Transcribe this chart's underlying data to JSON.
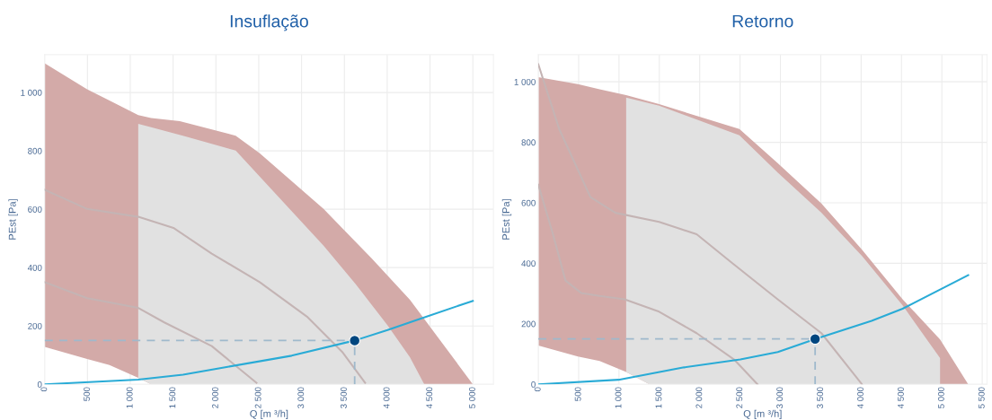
{
  "chart_data": [
    {
      "type": "area",
      "title": "Insuflação",
      "xlabel": "Q [m ³/h]",
      "ylabel": "PEst [Pa]",
      "xlim": [
        0,
        5240
      ],
      "ylim": [
        0,
        1130
      ],
      "xticks": [
        0,
        500,
        {
          "value": 1000,
          "label": "1 000"
        },
        {
          "value": 1500,
          "label": "1 500"
        },
        {
          "value": 2000,
          "label": "2 000"
        },
        {
          "value": 2500,
          "label": "2 500"
        },
        {
          "value": 3000,
          "label": "3 000"
        },
        {
          "value": 3500,
          "label": "3 500"
        },
        {
          "value": 4000,
          "label": "4 000"
        },
        {
          "value": 4500,
          "label": "4 500"
        },
        {
          "value": 5000,
          "label": "5 000"
        }
      ],
      "yticks": [
        0,
        200,
        400,
        600,
        800,
        {
          "value": 1000,
          "label": "1 000"
        }
      ],
      "grid": true,
      "series": [
        {
          "color": "#d3aaa8",
          "x": [
            0,
            496,
            757,
            1093,
            1243,
            1578,
            2231,
            2511,
            3257,
            3817,
            4265,
            5000,
            1243,
            1093,
            757,
            496,
            0
          ],
          "values": [
            1100,
            1011,
            973,
            923,
            913,
            902,
            852,
            792,
            601,
            432,
            290,
            0,
            0,
            22,
            66,
            87,
            128
          ]
        },
        {
          "color": "#e1e1e1",
          "x": [
            1093,
            1243,
            1653,
            2231,
            3257,
            3631,
            4004,
            4265,
            4433,
            1243,
            1093
          ],
          "values": [
            893,
            881,
            849,
            801,
            475,
            344,
            202,
            93,
            0,
            0,
            22
          ]
        },
        {
          "type": "line",
          "color": "#c4b4b4",
          "x": [
            0,
            496,
            1093,
            1504,
            1951,
            2511,
            3071,
            3481,
            3742
          ],
          "values": [
            667,
            601,
            574,
            536,
            448,
            350,
            230,
            109,
            5
          ]
        },
        {
          "type": "line",
          "color": "#c4b4b4",
          "x": [
            0,
            496,
            1093,
            1392,
            1951,
            2474
          ],
          "values": [
            350,
            295,
            262,
            213,
            131,
            5
          ]
        },
        {
          "type": "line",
          "color": "#29abd6",
          "x": [
            0,
            1093,
            1616,
            2138,
            2884,
            3631,
            4004,
            4377,
            5000
          ],
          "values": [
            0,
            16,
            33,
            60,
            98,
            151,
            186,
            224,
            286
          ]
        },
        {
          "type": "line",
          "color": "#9fb9cc",
          "line_style": "dashed",
          "x": [
            0,
            3620
          ],
          "values": [
            150,
            150
          ]
        },
        {
          "type": "line",
          "color": "#9fb9cc",
          "line_style": "dashed",
          "x": [
            3620,
            3620
          ],
          "values": [
            0,
            150
          ]
        },
        {
          "type": "scatter",
          "marker": "circle",
          "color": "#00467f",
          "x": [
            3620
          ],
          "values": [
            150
          ]
        }
      ]
    },
    {
      "type": "area",
      "title": "Retorno",
      "xlabel": "Q [m ³/h]",
      "ylabel": "PEst [Pa]",
      "xlim": [
        0,
        5560
      ],
      "ylim": [
        0,
        1090
      ],
      "xticks": [
        0,
        500,
        {
          "value": 1000,
          "label": "1 000"
        },
        {
          "value": 1500,
          "label": "1 500"
        },
        {
          "value": 2000,
          "label": "2 000"
        },
        {
          "value": 2500,
          "label": "2 500"
        },
        {
          "value": 3000,
          "label": "3 000"
        },
        {
          "value": 3500,
          "label": "3 500"
        },
        {
          "value": 4000,
          "label": "4 000"
        },
        {
          "value": 4500,
          "label": "4 500"
        },
        {
          "value": 5000,
          "label": "5 000"
        },
        {
          "value": 5500,
          "label": "5 500"
        }
      ],
      "yticks": [
        0,
        200,
        400,
        600,
        800,
        {
          "value": 1000,
          "label": "1 000"
        }
      ],
      "grid": true,
      "series": [
        {
          "color": "#d3aaa8",
          "x": [
            0,
            491,
            760,
            1089,
            1497,
            2492,
            2966,
            3508,
            4011,
            4514,
            4978,
            5327,
            1379,
            1089,
            760,
            491,
            0
          ],
          "values": [
            1015,
            992,
            975,
            956,
            926,
            844,
            731,
            598,
            445,
            281,
            148,
            0,
            0,
            41,
            77,
            92,
            128
          ]
        },
        {
          "color": "#e1e1e1",
          "x": [
            1089,
            1497,
            2492,
            2966,
            3508,
            4011,
            4514,
            4978,
            4978,
            1379,
            1089
          ],
          "values": [
            948,
            921,
            823,
            700,
            567,
            424,
            261,
            87,
            0,
            0,
            41
          ]
        },
        {
          "type": "line",
          "color": "#c4b4b4",
          "x": [
            0,
            182,
            337,
            530,
            760,
            1068,
            1497,
            1962,
            2426,
            2716
          ],
          "values": [
            660,
            496,
            343,
            302,
            292,
            281,
            240,
            169,
            82,
            0
          ]
        },
        {
          "type": "line",
          "color": "#c4b4b4",
          "x": [
            0,
            259,
            646,
            955,
            1497,
            1962,
            2387,
            2966,
            3508,
            4011
          ],
          "values": [
            1058,
            844,
            619,
            567,
            537,
            496,
            404,
            281,
            169,
            0
          ]
        },
        {
          "type": "line",
          "color": "#29abd6",
          "x": [
            0,
            995,
            1807,
            2504,
            2968,
            3433,
            4130,
            4514,
            5327
          ],
          "values": [
            0,
            15,
            56,
            82,
            107,
            150,
            210,
            250,
            361
          ]
        },
        {
          "type": "line",
          "color": "#9fb9cc",
          "line_style": "dashed",
          "x": [
            0,
            3430
          ],
          "values": [
            150,
            150
          ]
        },
        {
          "type": "line",
          "color": "#9fb9cc",
          "line_style": "dashed",
          "x": [
            3430,
            3430
          ],
          "values": [
            0,
            150
          ]
        },
        {
          "type": "scatter",
          "marker": "circle",
          "color": "#00467f",
          "x": [
            3430
          ],
          "values": [
            150
          ]
        }
      ]
    }
  ]
}
